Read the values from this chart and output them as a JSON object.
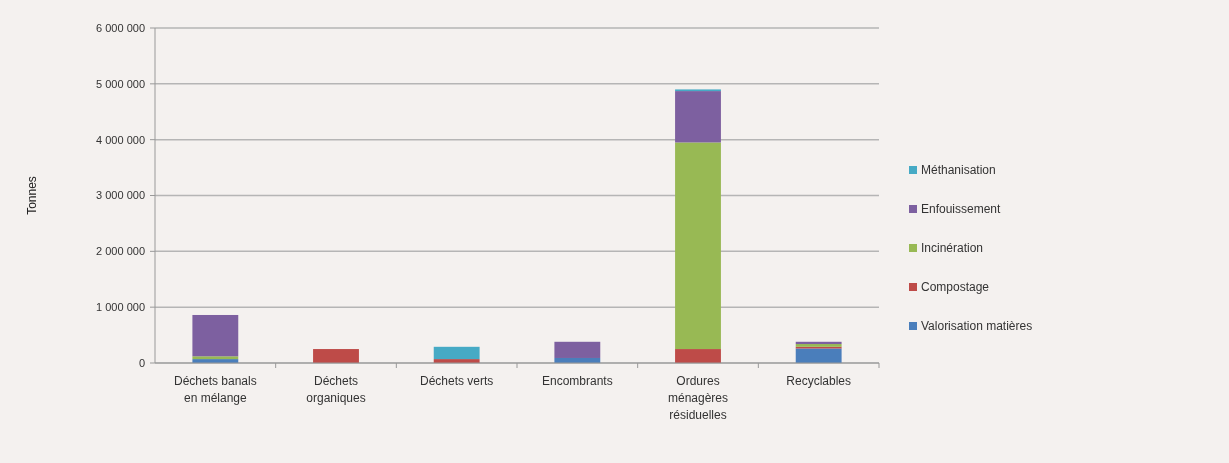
{
  "chart_data": {
    "type": "bar",
    "stacked": true,
    "ylabel": "Tonnes",
    "categories": [
      "Déchets banals en mélange",
      "Déchets organiques",
      "Déchets verts",
      "Encombrants",
      "Ordures ménagères résiduelles",
      "Recyclables"
    ],
    "series": [
      {
        "name": "Valorisation matières",
        "color": "#4a7ebb",
        "values": [
          70000,
          0,
          0,
          90000,
          0,
          260000
        ]
      },
      {
        "name": "Compostage",
        "color": "#be4b48",
        "values": [
          0,
          250000,
          70000,
          0,
          250000,
          30000
        ]
      },
      {
        "name": "Incinération",
        "color": "#98b954",
        "values": [
          50000,
          0,
          0,
          0,
          3700000,
          50000
        ]
      },
      {
        "name": "Enfouissement",
        "color": "#7d60a0",
        "values": [
          740000,
          0,
          0,
          290000,
          920000,
          40000
        ]
      },
      {
        "name": "Méthanisation",
        "color": "#46aac5",
        "values": [
          0,
          0,
          220000,
          0,
          30000,
          0
        ]
      }
    ],
    "ylim": [
      0,
      6000000
    ],
    "yticks": [
      {
        "value": 0,
        "label": "0"
      },
      {
        "value": 1000000,
        "label": "1 000 000"
      },
      {
        "value": 2000000,
        "label": "2 000 000"
      },
      {
        "value": 3000000,
        "label": "3 000 000"
      },
      {
        "value": 4000000,
        "label": "4 000 000"
      },
      {
        "value": 5000000,
        "label": "5 000 000"
      },
      {
        "value": 6000000,
        "label": "6 000 000"
      }
    ],
    "grid": "y",
    "legend": "right"
  }
}
